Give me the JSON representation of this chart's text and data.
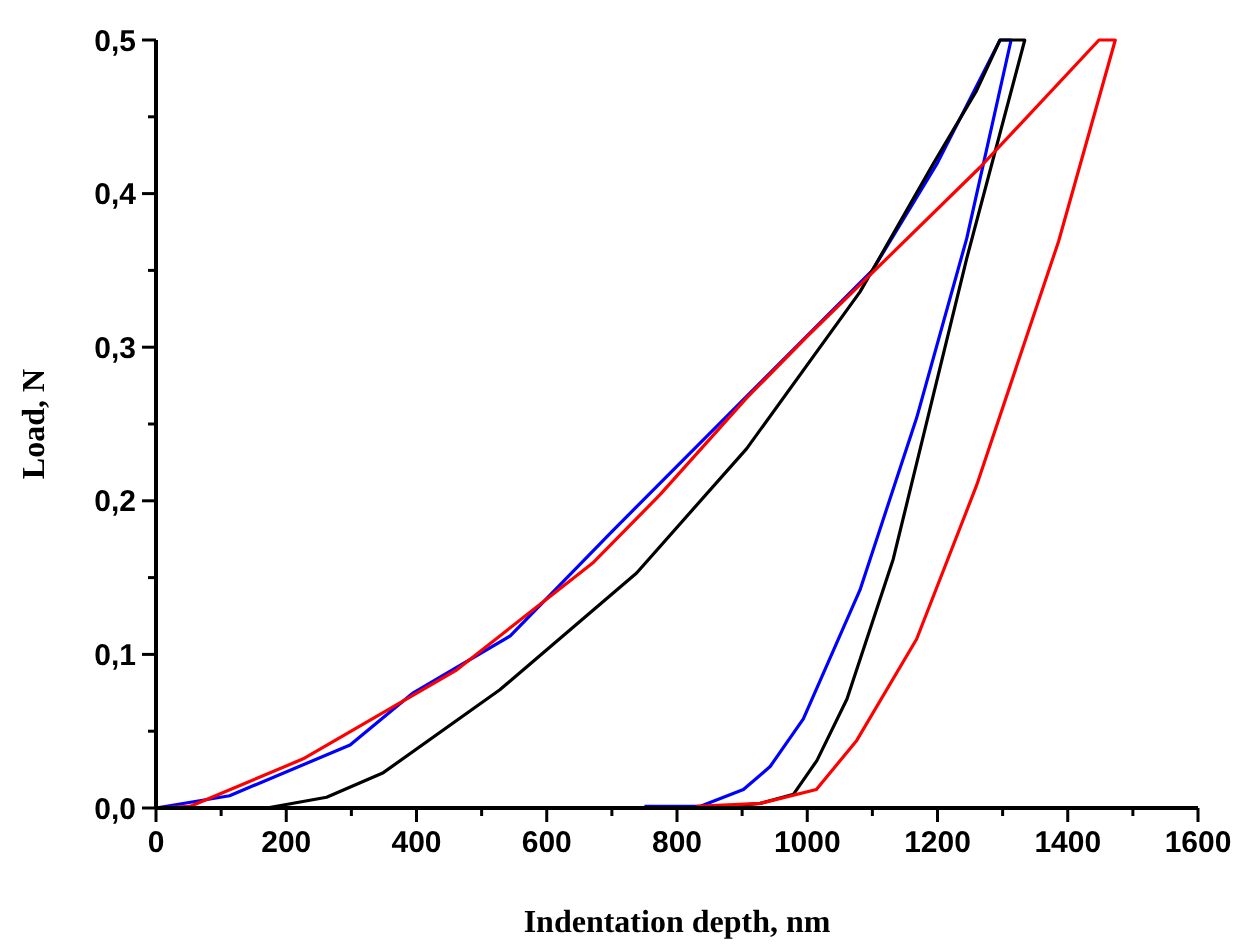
{
  "chart_data": {
    "type": "line",
    "xlabel": "Indentation depth, nm",
    "ylabel": "Load, N",
    "xlim": [
      0,
      1600
    ],
    "ylim": [
      0,
      0.5
    ],
    "xticks": [
      {
        "value": 0,
        "label": "0"
      },
      {
        "value": 100,
        "label": null
      },
      {
        "value": 200,
        "label": "200"
      },
      {
        "value": 300,
        "label": null
      },
      {
        "value": 400,
        "label": "400"
      },
      {
        "value": 500,
        "label": null
      },
      {
        "value": 600,
        "label": "600"
      },
      {
        "value": 700,
        "label": null
      },
      {
        "value": 800,
        "label": "800"
      },
      {
        "value": 900,
        "label": null
      },
      {
        "value": 1000,
        "label": "1000"
      },
      {
        "value": 1100,
        "label": null
      },
      {
        "value": 1200,
        "label": "1200"
      },
      {
        "value": 1300,
        "label": null
      },
      {
        "value": 1400,
        "label": "1400"
      },
      {
        "value": 1500,
        "label": null
      },
      {
        "value": 1600,
        "label": "1600"
      }
    ],
    "yticks": [
      {
        "value": 0,
        "label": "0,0"
      },
      {
        "value": 0.05,
        "label": null
      },
      {
        "value": 0.1,
        "label": "0,1"
      },
      {
        "value": 0.15,
        "label": null
      },
      {
        "value": 0.2,
        "label": "0,2"
      },
      {
        "value": 0.25,
        "label": null
      },
      {
        "value": 0.3,
        "label": "0,3"
      },
      {
        "value": 0.35,
        "label": null
      },
      {
        "value": 0.4,
        "label": "0,4"
      },
      {
        "value": 0.45,
        "label": null
      },
      {
        "value": 0.5,
        "label": "0,5"
      }
    ],
    "grid": false,
    "marker": "none",
    "line_style": "solid",
    "series": [
      {
        "color": "#0000ff",
        "x": [
          0,
          113,
          298,
          395,
          544,
          700,
          900,
          1100,
          1200,
          1296,
          1313,
          1245,
          1168,
          1081,
          994,
          943,
          902,
          835,
          750
        ],
        "values": [
          0,
          0.008,
          0.041,
          0.075,
          0.112,
          0.18,
          0.265,
          0.35,
          0.42,
          0.5,
          0.5,
          0.371,
          0.254,
          0.142,
          0.058,
          0.027,
          0.012,
          0.001,
          0.001
        ]
      },
      {
        "color": "#000000",
        "x": [
          170,
          262,
          349,
          528,
          738,
          907,
          1081,
          1193,
          1260,
          1296,
          1334,
          1245,
          1132,
          1061,
          1015,
          979,
          928,
          850
        ],
        "values": [
          0,
          0.007,
          0.023,
          0.077,
          0.153,
          0.234,
          0.336,
          0.419,
          0.467,
          0.5,
          0.5,
          0.358,
          0.162,
          0.071,
          0.031,
          0.009,
          0.003,
          0
        ]
      },
      {
        "color": "#ff0000",
        "x": [
          0,
          52,
          226,
          462,
          672,
          774,
          907,
          1000,
          1265,
          1448,
          1473,
          1386,
          1260,
          1168,
          1076,
          1014,
          928,
          830
        ],
        "values": [
          0,
          0.001,
          0.032,
          0.09,
          0.16,
          0.204,
          0.267,
          0.307,
          0.417,
          0.5,
          0.5,
          0.369,
          0.21,
          0.11,
          0.044,
          0.012,
          0.003,
          0.001
        ]
      }
    ]
  }
}
